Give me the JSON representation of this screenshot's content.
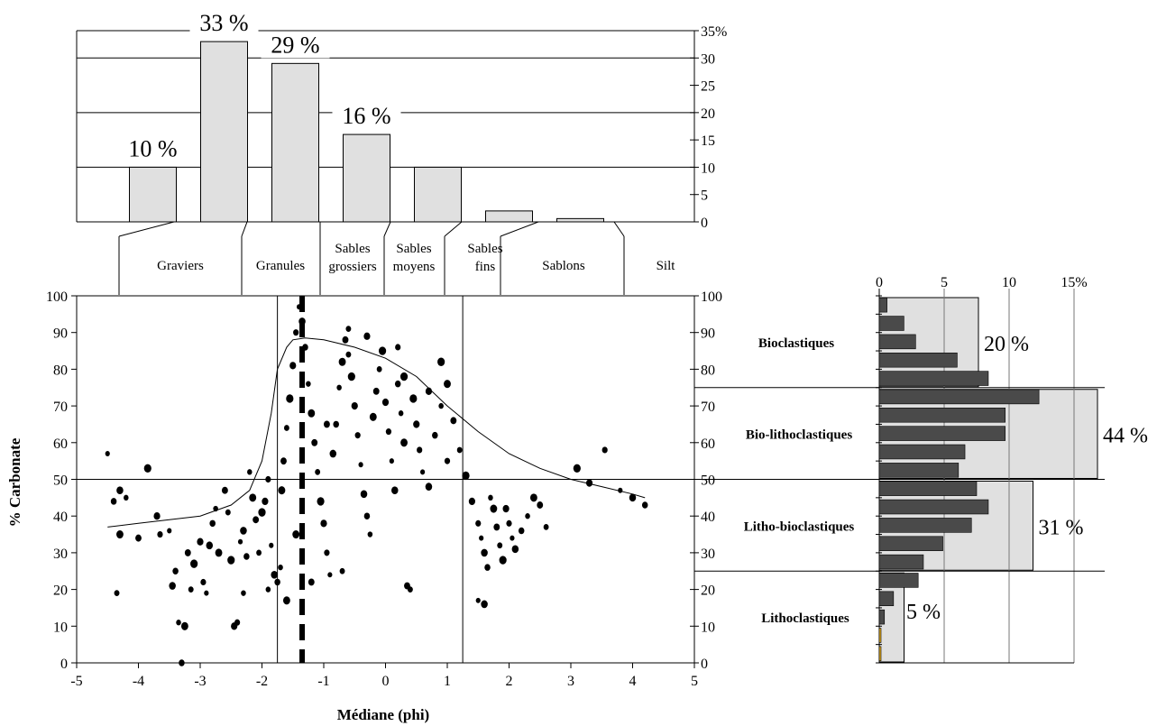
{
  "chart_data": [
    {
      "type": "bar",
      "categories": [
        "Graviers",
        "Granules",
        "Sables grossiers",
        "Sables moyens",
        "Sables fins",
        "Sablons",
        "Silt"
      ],
      "category_lines": [
        [
          "Graviers"
        ],
        [
          "Granules"
        ],
        [
          "Sables",
          "grossiers"
        ],
        [
          "Sables",
          "moyens"
        ],
        [
          "Sables",
          "fins"
        ],
        [
          "Sablons"
        ],
        [
          "Silt"
        ]
      ],
      "values": [
        10,
        33,
        29,
        16,
        10,
        2,
        0.6
      ],
      "data_labels": [
        "10 %",
        "33 %",
        "29 %",
        "16 %",
        "",
        "",
        ""
      ],
      "y_ticks": [
        "0",
        "5",
        "10",
        "15",
        "20",
        "25",
        "30",
        "35%"
      ],
      "ylim": [
        0,
        35
      ],
      "gridlines": [
        10,
        20,
        30
      ],
      "bar_color": "#e0e0e0"
    },
    {
      "type": "scatter",
      "xlabel": "Médiane (phi)",
      "ylabel": "% Carbonate",
      "xlim": [
        -5,
        5
      ],
      "ylim": [
        0,
        100
      ],
      "x_ticks": [
        "-5",
        "-4",
        "-3",
        "-2",
        "-1",
        "0",
        "1",
        "2",
        "3",
        "4",
        "5"
      ],
      "y_ticks": [
        "0",
        "10",
        "20",
        "30",
        "40",
        "50",
        "60",
        "70",
        "80",
        "90",
        "100"
      ],
      "reference_lines": {
        "x": [
          -1.75,
          1.25
        ],
        "y": [
          50
        ],
        "x_dashed": [
          -1.35
        ]
      },
      "trend_line": {
        "x": [
          -4.5,
          -4.0,
          -3.5,
          -3.0,
          -2.5,
          -2.2,
          -2.0,
          -1.85,
          -1.75,
          -1.6,
          -1.5,
          -1.3,
          -1.0,
          -0.5,
          0.0,
          0.5,
          1.0,
          1.5,
          2.0,
          2.5,
          3.0,
          3.5,
          4.0,
          4.2
        ],
        "y": [
          37,
          38,
          39,
          40,
          43,
          47,
          55,
          68,
          80,
          86,
          88,
          88.5,
          88,
          86,
          83,
          78,
          70,
          63,
          57,
          53,
          50,
          48,
          46,
          45
        ]
      },
      "points": [
        [
          -4.5,
          57
        ],
        [
          -4.3,
          47
        ],
        [
          -4.4,
          44
        ],
        [
          -4.2,
          45
        ],
        [
          -4.3,
          35
        ],
        [
          -4.0,
          34
        ],
        [
          -4.35,
          19
        ],
        [
          -3.85,
          53
        ],
        [
          -3.7,
          40
        ],
        [
          -3.65,
          35
        ],
        [
          -3.5,
          36
        ],
        [
          -3.45,
          21
        ],
        [
          -3.4,
          25
        ],
        [
          -3.35,
          11
        ],
        [
          -3.25,
          10
        ],
        [
          -3.2,
          30
        ],
        [
          -3.15,
          20
        ],
        [
          -3.1,
          27
        ],
        [
          -3.0,
          33
        ],
        [
          -2.95,
          22
        ],
        [
          -2.9,
          19
        ],
        [
          -2.85,
          32
        ],
        [
          -2.8,
          38
        ],
        [
          -2.75,
          42
        ],
        [
          -2.7,
          30
        ],
        [
          -2.6,
          47
        ],
        [
          -2.55,
          41
        ],
        [
          -2.5,
          28
        ],
        [
          -2.45,
          10
        ],
        [
          -2.4,
          11
        ],
        [
          -2.35,
          33
        ],
        [
          -2.3,
          36
        ],
        [
          -2.25,
          29
        ],
        [
          -2.2,
          52
        ],
        [
          -2.15,
          45
        ],
        [
          -2.1,
          39
        ],
        [
          -2.05,
          30
        ],
        [
          -2.0,
          41
        ],
        [
          -1.95,
          44
        ],
        [
          -1.9,
          50
        ],
        [
          -1.85,
          32
        ],
        [
          -1.8,
          24
        ],
        [
          -1.75,
          22
        ],
        [
          -1.7,
          26
        ],
        [
          -1.68,
          47
        ],
        [
          -1.65,
          55
        ],
        [
          -1.6,
          64
        ],
        [
          -1.55,
          72
        ],
        [
          -1.5,
          81
        ],
        [
          -1.45,
          90
        ],
        [
          -1.4,
          97
        ],
        [
          -1.35,
          93
        ],
        [
          -1.3,
          86
        ],
        [
          -1.25,
          76
        ],
        [
          -1.2,
          68
        ],
        [
          -1.15,
          60
        ],
        [
          -1.1,
          52
        ],
        [
          -1.05,
          44
        ],
        [
          -1.0,
          38
        ],
        [
          -0.95,
          30
        ],
        [
          -0.9,
          24
        ],
        [
          -0.85,
          57
        ],
        [
          -0.8,
          65
        ],
        [
          -0.75,
          75
        ],
        [
          -0.7,
          82
        ],
        [
          -0.65,
          88
        ],
        [
          -0.6,
          91
        ],
        [
          -0.55,
          78
        ],
        [
          -0.5,
          70
        ],
        [
          -0.45,
          62
        ],
        [
          -0.4,
          54
        ],
        [
          -0.35,
          46
        ],
        [
          -0.3,
          40
        ],
        [
          -0.25,
          35
        ],
        [
          -0.2,
          67
        ],
        [
          -0.15,
          74
        ],
        [
          -0.1,
          80
        ],
        [
          -0.05,
          85
        ],
        [
          0.0,
          71
        ],
        [
          0.05,
          63
        ],
        [
          0.1,
          55
        ],
        [
          0.15,
          47
        ],
        [
          0.2,
          76
        ],
        [
          0.25,
          68
        ],
        [
          0.3,
          60
        ],
        [
          0.35,
          21
        ],
        [
          0.4,
          20
        ],
        [
          0.45,
          72
        ],
        [
          0.5,
          65
        ],
        [
          0.55,
          58
        ],
        [
          0.6,
          52
        ],
        [
          0.7,
          48
        ],
        [
          0.8,
          62
        ],
        [
          0.9,
          70
        ],
        [
          1.0,
          76
        ],
        [
          1.1,
          66
        ],
        [
          1.2,
          58
        ],
        [
          1.3,
          51
        ],
        [
          1.4,
          44
        ],
        [
          1.5,
          38
        ],
        [
          1.55,
          34
        ],
        [
          1.6,
          30
        ],
        [
          1.65,
          26
        ],
        [
          1.7,
          45
        ],
        [
          1.75,
          42
        ],
        [
          1.8,
          37
        ],
        [
          1.85,
          32
        ],
        [
          1.9,
          28
        ],
        [
          1.95,
          42
        ],
        [
          2.0,
          38
        ],
        [
          2.05,
          34
        ],
        [
          2.1,
          31
        ],
        [
          2.2,
          36
        ],
        [
          2.3,
          40
        ],
        [
          2.4,
          45
        ],
        [
          2.5,
          43
        ],
        [
          2.6,
          37
        ],
        [
          3.1,
          53
        ],
        [
          3.3,
          49
        ],
        [
          3.55,
          58
        ],
        [
          3.8,
          47
        ],
        [
          4.0,
          45
        ],
        [
          4.2,
          43
        ],
        [
          -2.3,
          19
        ],
        [
          -1.6,
          17
        ],
        [
          -1.2,
          22
        ],
        [
          -0.7,
          25
        ],
        [
          0.9,
          82
        ],
        [
          -0.3,
          89
        ],
        [
          0.2,
          86
        ],
        [
          1.5,
          17
        ],
        [
          1.6,
          16
        ],
        [
          -3.3,
          0
        ],
        [
          -1.9,
          20
        ],
        [
          -1.45,
          35
        ],
        [
          -0.95,
          65
        ],
        [
          -0.6,
          84
        ],
        [
          0.3,
          78
        ],
        [
          0.7,
          74
        ],
        [
          1.0,
          55
        ]
      ]
    },
    {
      "type": "bar",
      "orientation": "horizontal",
      "ylim": [
        0,
        100
      ],
      "x_ticks": [
        "0",
        "5",
        "10",
        "15%"
      ],
      "xlim": [
        0,
        15
      ],
      "y_ticks": [
        "0",
        "10",
        "20",
        "30",
        "40",
        "50",
        "60",
        "70",
        "80",
        "90",
        "100"
      ],
      "bins": [
        {
          "y": 0,
          "value": 0.1
        },
        {
          "y": 5,
          "value": 0.1
        },
        {
          "y": 10,
          "value": 0.4
        },
        {
          "y": 15,
          "value": 1.1
        },
        {
          "y": 20,
          "value": 3.0
        },
        {
          "y": 25,
          "value": 3.4
        },
        {
          "y": 30,
          "value": 4.9
        },
        {
          "y": 35,
          "value": 7.1
        },
        {
          "y": 40,
          "value": 8.4
        },
        {
          "y": 45,
          "value": 7.5
        },
        {
          "y": 50,
          "value": 6.1
        },
        {
          "y": 55,
          "value": 6.6
        },
        {
          "y": 60,
          "value": 9.7
        },
        {
          "y": 65,
          "value": 9.7
        },
        {
          "y": 70,
          "value": 12.3
        },
        {
          "y": 75,
          "value": 8.4
        },
        {
          "y": 80,
          "value": 6.0
        },
        {
          "y": 85,
          "value": 2.8
        },
        {
          "y": 90,
          "value": 1.9
        },
        {
          "y": 95,
          "value": 0.6
        }
      ],
      "classes": [
        {
          "name": "Lithoclastiques",
          "from": 0,
          "to": 25,
          "percent": 5,
          "label": "5 %"
        },
        {
          "name": "Litho-bioclastiques",
          "from": 25,
          "to": 50,
          "percent": 31,
          "label": "31 %"
        },
        {
          "name": "Bio-lithoclastiques",
          "from": 50,
          "to": 75,
          "percent": 44,
          "label": "44 %"
        },
        {
          "name": "Bioclastiques",
          "from": 75,
          "to": 100,
          "percent": 20,
          "label": "20 %"
        }
      ],
      "class_scale_max": 44,
      "bar_color": "#4a4a4a",
      "class_fill": "#e0e0e0",
      "accent_bar_color": "#e8b020"
    }
  ]
}
